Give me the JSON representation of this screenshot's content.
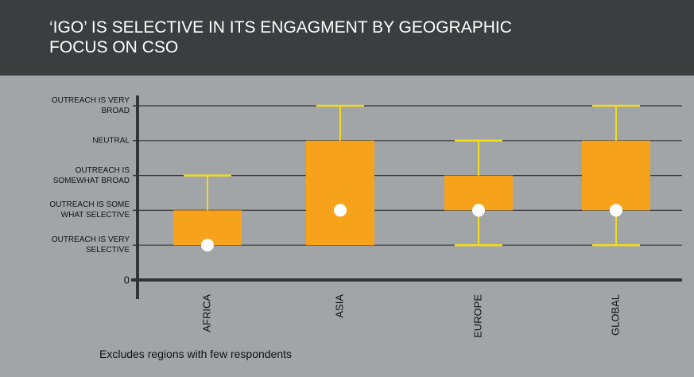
{
  "chart_data": {
    "type": "box",
    "title": "‘IGO’ IS SELECTIVE IN ITS ENGAGMENT BY GEOGRAPHIC FOCUS ON CSO",
    "note": "Excludes regions with few respondents",
    "categories": [
      "AFRICA",
      "ASIA",
      "EUROPE",
      "GLOBAL"
    ],
    "min": [
      1,
      1,
      1,
      1
    ],
    "q1": [
      1,
      1,
      2,
      2
    ],
    "median": [
      1,
      2,
      2,
      2
    ],
    "q3": [
      2,
      4,
      3,
      4
    ],
    "max": [
      3,
      5,
      4,
      5
    ],
    "box_color": "#f7a21b",
    "whisker_color": "#f2dc1c",
    "median_color": "#ffffff",
    "ylim": [
      0,
      5.45
    ],
    "yticks": [
      0,
      {
        "value": 1,
        "label": "OUTREACH IS VERY SELECTIVE"
      },
      {
        "value": 2,
        "label": "OUTREACH IS SOME WHAT SELECTIVE"
      },
      {
        "value": 3,
        "label": "OUTREACH IS SOMEWHAT BROAD"
      },
      {
        "value": 4,
        "label": "NEUTRAL"
      },
      {
        "value": 5,
        "label": "OUTREACH IS VERY BROAD"
      }
    ],
    "grid": true
  }
}
